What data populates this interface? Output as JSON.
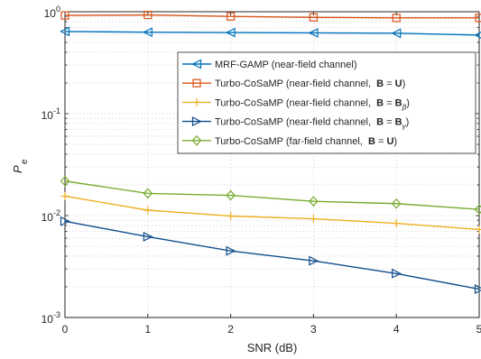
{
  "chart_data": {
    "type": "line",
    "xlabel": "SNR (dB)",
    "ylabel_main": "P",
    "ylabel_sub": "e",
    "yscale": "log",
    "ylim": [
      0.001,
      1
    ],
    "xlim": [
      0,
      5
    ],
    "grid": true,
    "legend_position": "top-right",
    "x": [
      0,
      1,
      2,
      3,
      4,
      5
    ],
    "x_tick_labels": [
      "0",
      "1",
      "2",
      "3",
      "4",
      "5"
    ],
    "y_ticks": [
      {
        "value": 0.001,
        "base": "10",
        "exp": "-3"
      },
      {
        "value": 0.01,
        "base": "10",
        "exp": "-2"
      },
      {
        "value": 0.1,
        "base": "10",
        "exp": "-1"
      },
      {
        "value": 1,
        "base": "10",
        "exp": "0"
      }
    ],
    "series": [
      {
        "legend": [
          {
            "t": "MRF-GAMP (near-field channel)"
          }
        ],
        "color": "#0072BD",
        "marker": "triangle-left",
        "values": [
          0.64,
          0.63,
          0.625,
          0.62,
          0.615,
          0.59
        ]
      },
      {
        "legend": [
          {
            "t": "Turbo-CoSaMP (near-field channel,  "
          },
          {
            "t": "B",
            "b": true
          },
          {
            "t": " = "
          },
          {
            "t": "U",
            "b": true
          },
          {
            "t": ")"
          }
        ],
        "color": "#D95319",
        "marker": "square",
        "values": [
          0.92,
          0.93,
          0.9,
          0.88,
          0.87,
          0.87
        ]
      },
      {
        "legend": [
          {
            "t": "Turbo-CoSaMP (near-field channel,  "
          },
          {
            "t": "B",
            "b": true
          },
          {
            "t": " = "
          },
          {
            "t": "B",
            "b": true
          },
          {
            "t": "β",
            "sub": true
          },
          {
            "t": ")"
          }
        ],
        "color": "#EDB120",
        "marker": "plus",
        "values": [
          0.0155,
          0.0113,
          0.0099,
          0.0093,
          0.0084,
          0.0073
        ]
      },
      {
        "legend": [
          {
            "t": "Turbo-CoSaMP (near-field channel,  "
          },
          {
            "t": "B",
            "b": true
          },
          {
            "t": " = "
          },
          {
            "t": "B",
            "b": true
          },
          {
            "t": "γ",
            "sub": true
          },
          {
            "t": ")"
          }
        ],
        "color": "#124E8C",
        "marker": "triangle-right",
        "values": [
          0.0088,
          0.0062,
          0.0045,
          0.0036,
          0.0027,
          0.0019
        ]
      },
      {
        "legend": [
          {
            "t": "Turbo-CoSaMP (far-field channel,  "
          },
          {
            "t": "B",
            "b": true
          },
          {
            "t": " = "
          },
          {
            "t": "U",
            "b": true
          },
          {
            "t": ")"
          }
        ],
        "color": "#77AC30",
        "marker": "diamond",
        "values": [
          0.0218,
          0.0165,
          0.0158,
          0.0138,
          0.0131,
          0.0115
        ]
      }
    ]
  }
}
